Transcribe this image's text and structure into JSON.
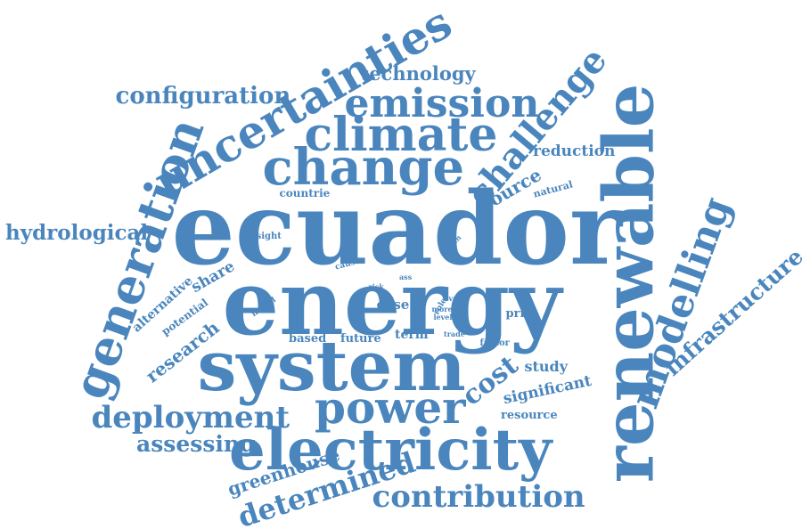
{
  "style": {
    "word_color": "#4a86bd",
    "background": "#ffffff"
  },
  "words": [
    {
      "id": "ecuador",
      "text": "ecuador"
    },
    {
      "id": "energy",
      "text": "energy"
    },
    {
      "id": "system",
      "text": "system"
    },
    {
      "id": "renewable",
      "text": "renewable"
    },
    {
      "id": "electricity",
      "text": "electricity"
    },
    {
      "id": "change",
      "text": "change"
    },
    {
      "id": "climate",
      "text": "climate"
    },
    {
      "id": "uncertainties",
      "text": "uncertainties"
    },
    {
      "id": "generation",
      "text": "generation"
    },
    {
      "id": "power",
      "text": "power"
    },
    {
      "id": "emission",
      "text": "emission"
    },
    {
      "id": "modelling",
      "text": "modelling"
    },
    {
      "id": "challenge",
      "text": "challenge"
    },
    {
      "id": "contribution",
      "text": "contribution"
    },
    {
      "id": "deployment",
      "text": "deployment"
    },
    {
      "id": "determined",
      "text": "determined"
    },
    {
      "id": "configuration",
      "text": "configuration"
    },
    {
      "id": "cost",
      "text": "cost"
    },
    {
      "id": "assessing",
      "text": "assessing"
    },
    {
      "id": "infrastructure",
      "text": "infrastructure"
    },
    {
      "id": "hydrological",
      "text": "hydrological"
    },
    {
      "id": "technology",
      "text": "technology"
    },
    {
      "id": "greenhouse",
      "text": "greenhouse"
    },
    {
      "id": "research",
      "text": "research"
    },
    {
      "id": "source",
      "text": "source"
    },
    {
      "id": "reduction",
      "text": "reduction"
    },
    {
      "id": "significant",
      "text": "significant"
    },
    {
      "id": "study",
      "text": "study"
    },
    {
      "id": "share",
      "text": "share"
    },
    {
      "id": "case",
      "text": "case"
    },
    {
      "id": "price",
      "text": "price"
    },
    {
      "id": "alternative",
      "text": "alternative"
    },
    {
      "id": "potential",
      "text": "potential"
    },
    {
      "id": "resource",
      "text": "resource"
    },
    {
      "id": "term",
      "text": "term"
    },
    {
      "id": "future",
      "text": "future"
    },
    {
      "id": "based",
      "text": "based"
    },
    {
      "id": "countrie",
      "text": "countrie"
    },
    {
      "id": "natural",
      "text": "natural"
    },
    {
      "id": "insight",
      "text": "insight"
    },
    {
      "id": "factor",
      "text": "factor"
    },
    {
      "id": "model",
      "text": "model"
    },
    {
      "id": "cause",
      "text": "cause"
    },
    {
      "id": "role",
      "text": "role"
    },
    {
      "id": "more",
      "text": "more"
    },
    {
      "id": "level",
      "text": "level"
    },
    {
      "id": "vary",
      "text": "vary"
    },
    {
      "id": "trade",
      "text": "trade"
    },
    {
      "id": "plan",
      "text": "plan"
    },
    {
      "id": "risk",
      "text": "risk"
    },
    {
      "id": "ass",
      "text": "ass"
    }
  ]
}
